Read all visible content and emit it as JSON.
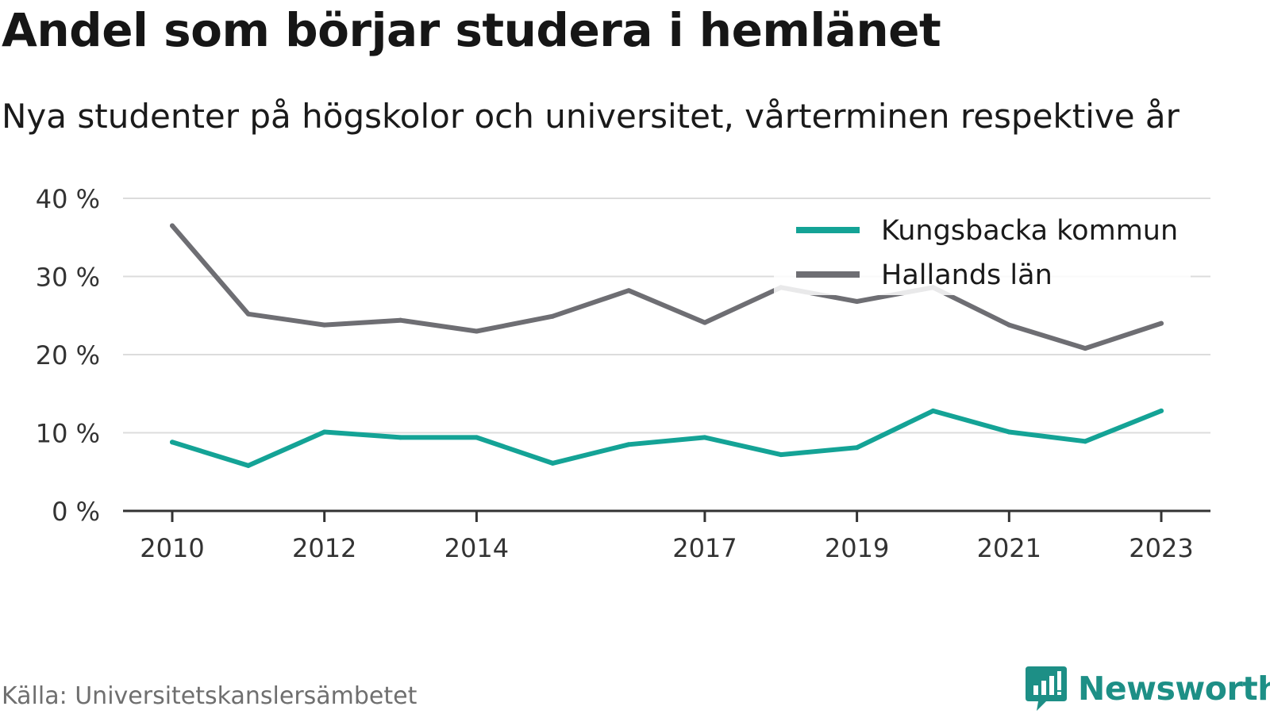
{
  "header": {
    "title": "Andel som börjar studera i hemlänet",
    "subtitle": "Nya studenter på högskolor och universitet, vårterminen respektive år"
  },
  "footer": {
    "source": "Källa: Universitetskanslersämbetet",
    "brand": "Newsworthy",
    "brand_icon": "newsworthy-logo-icon",
    "brand_color": "#1d8f86"
  },
  "chart_data": {
    "type": "line",
    "title": "Andel som börjar studera i hemlänet",
    "subtitle": "Nya studenter på högskolor och universitet, vårterminen respektive år",
    "xlabel": "",
    "ylabel": "",
    "x": [
      2010,
      2011,
      2012,
      2013,
      2014,
      2015,
      2016,
      2017,
      2018,
      2019,
      2020,
      2021,
      2022,
      2023
    ],
    "x_ticks": [
      2010,
      2012,
      2014,
      2017,
      2019,
      2021,
      2023
    ],
    "x_tick_labels": [
      "2010",
      "2012",
      "2014",
      "2017",
      "2019",
      "2021",
      "2023"
    ],
    "ylim": [
      0,
      40
    ],
    "y_ticks": [
      0,
      10,
      20,
      30,
      40
    ],
    "y_tick_labels": [
      "0 %",
      "10 %",
      "20 %",
      "30 %",
      "40 %"
    ],
    "grid": true,
    "legend": "top-right",
    "series": [
      {
        "name": "Kungsbacka kommun",
        "color": "#14a396",
        "values": [
          8.8,
          5.8,
          10.1,
          9.4,
          9.4,
          6.1,
          8.5,
          9.4,
          7.2,
          8.1,
          12.8,
          10.1,
          8.9,
          12.8
        ]
      },
      {
        "name": "Hallands län",
        "color": "#6e6e73",
        "values": [
          36.5,
          25.2,
          23.8,
          24.4,
          23.0,
          24.9,
          28.2,
          24.1,
          28.6,
          26.8,
          28.6,
          23.8,
          20.8,
          24.0
        ]
      }
    ]
  }
}
